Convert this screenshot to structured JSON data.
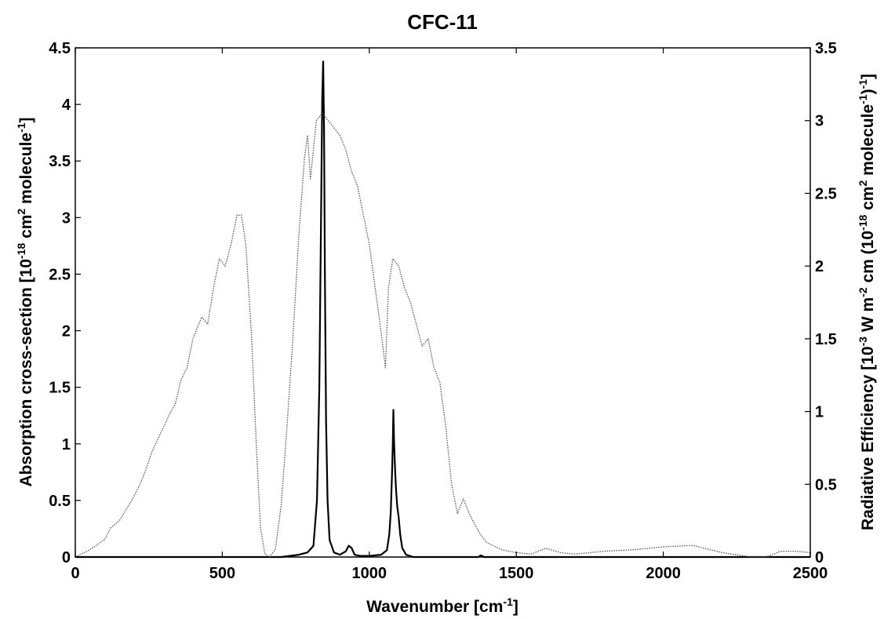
{
  "chart_data": {
    "type": "line",
    "title": "CFC-11",
    "xlabel": {
      "pre": "Wavenumber [cm",
      "sup": "-1",
      "post": "]"
    },
    "ylabel_left": {
      "parts": [
        {
          "t": "Absorption cross-section [10"
        },
        {
          "t": "-18",
          "sup": true
        },
        {
          "t": " cm"
        },
        {
          "t": "2",
          "sup": true
        },
        {
          "t": " molecule"
        },
        {
          "t": "-1",
          "sup": true
        },
        {
          "t": "]"
        }
      ]
    },
    "ylabel_right": {
      "parts": [
        {
          "t": "Radiative Efficiency [10"
        },
        {
          "t": "-3",
          "sup": true
        },
        {
          "t": " W m"
        },
        {
          "t": "-2",
          "sup": true
        },
        {
          "t": " cm (10"
        },
        {
          "t": "-18",
          "sup": true
        },
        {
          "t": " cm"
        },
        {
          "t": "2",
          "sup": true
        },
        {
          "t": " molecule"
        },
        {
          "t": "-1",
          "sup": true
        },
        {
          "t": ")"
        },
        {
          "t": "-1",
          "sup": true
        },
        {
          "t": "]"
        }
      ]
    },
    "xlim": [
      0,
      2500
    ],
    "ylim_left": [
      0,
      4.5
    ],
    "ylim_right": [
      0,
      3.5
    ],
    "x_ticks": [
      0,
      500,
      1000,
      1500,
      2000,
      2500
    ],
    "x_tick_labels": [
      "0",
      "500",
      "1000",
      "1500",
      "2000",
      "2500"
    ],
    "y_left_ticks": [
      0,
      0.5,
      1,
      1.5,
      2,
      2.5,
      3,
      3.5,
      4,
      4.5
    ],
    "y_left_tick_labels": [
      "0",
      "0.5",
      "1",
      "1.5",
      "2",
      "2.5",
      "3",
      "3.5",
      "4",
      "4.5"
    ],
    "y_right_ticks": [
      0,
      0.5,
      1,
      1.5,
      2,
      2.5,
      3,
      3.5
    ],
    "y_right_tick_labels": [
      "0",
      "0.5",
      "1",
      "1.5",
      "2",
      "2.5",
      "3",
      "3.5"
    ],
    "grid": false,
    "series": [
      {
        "style": "solid",
        "axis": "left",
        "color": "#000000",
        "x": [
          0,
          700,
          760,
          790,
          810,
          822,
          830,
          836,
          840,
          843,
          846,
          849,
          853,
          858,
          865,
          880,
          900,
          920,
          930,
          940,
          950,
          970,
          1000,
          1040,
          1060,
          1068,
          1073,
          1077,
          1080,
          1082,
          1084,
          1086,
          1088,
          1091,
          1095,
          1100,
          1105,
          1112,
          1125,
          1150,
          1370,
          1380,
          1390,
          1400,
          2500
        ],
        "y": [
          0,
          0,
          0.02,
          0.04,
          0.1,
          0.5,
          1.5,
          3.0,
          4.05,
          4.38,
          3.8,
          2.5,
          1.2,
          0.5,
          0.15,
          0.04,
          0.02,
          0.05,
          0.1,
          0.08,
          0.02,
          0.01,
          0.01,
          0.02,
          0.06,
          0.2,
          0.4,
          0.72,
          1.0,
          1.3,
          1.05,
          0.9,
          0.75,
          0.6,
          0.45,
          0.35,
          0.2,
          0.08,
          0.02,
          0,
          0,
          0.015,
          0,
          0,
          0
        ]
      },
      {
        "style": "dotted",
        "axis": "right",
        "color": "#555555",
        "x": [
          0,
          50,
          100,
          120,
          150,
          180,
          200,
          220,
          240,
          260,
          290,
          320,
          340,
          360,
          380,
          400,
          430,
          450,
          470,
          490,
          510,
          530,
          550,
          565,
          580,
          600,
          615,
          630,
          645,
          660,
          680,
          700,
          720,
          740,
          760,
          780,
          790,
          800,
          820,
          840,
          860,
          880,
          900,
          920,
          940,
          960,
          980,
          1000,
          1020,
          1040,
          1055,
          1065,
          1080,
          1100,
          1120,
          1140,
          1160,
          1180,
          1200,
          1220,
          1240,
          1260,
          1280,
          1300,
          1320,
          1340,
          1360,
          1380,
          1400,
          1450,
          1500,
          1550,
          1600,
          1650,
          1700,
          1800,
          1900,
          2000,
          2100,
          2200,
          2300,
          2350,
          2400,
          2450,
          2500
        ],
        "y": [
          0,
          0.05,
          0.12,
          0.2,
          0.25,
          0.35,
          0.42,
          0.5,
          0.6,
          0.72,
          0.85,
          0.98,
          1.05,
          1.22,
          1.3,
          1.5,
          1.65,
          1.6,
          1.85,
          2.05,
          2.0,
          2.15,
          2.35,
          2.35,
          2.15,
          1.5,
          0.8,
          0.2,
          0.02,
          0.0,
          0.05,
          0.35,
          0.9,
          1.5,
          2.2,
          2.75,
          2.9,
          2.6,
          3.0,
          3.05,
          3.0,
          2.95,
          2.9,
          2.8,
          2.65,
          2.55,
          2.35,
          2.15,
          1.85,
          1.55,
          1.3,
          1.85,
          2.05,
          2.0,
          1.85,
          1.75,
          1.6,
          1.45,
          1.5,
          1.3,
          1.2,
          0.9,
          0.5,
          0.3,
          0.4,
          0.3,
          0.22,
          0.15,
          0.1,
          0.05,
          0.03,
          0.02,
          0.06,
          0.03,
          0.02,
          0.04,
          0.05,
          0.07,
          0.08,
          0.03,
          0.0,
          0.0,
          0.04,
          0.04,
          0.03
        ]
      }
    ]
  }
}
